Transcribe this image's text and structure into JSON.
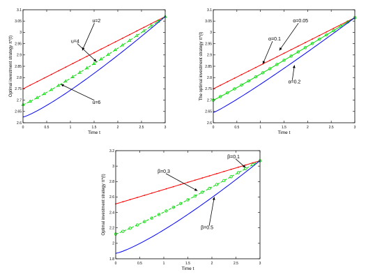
{
  "chart_data": [
    {
      "type": "line",
      "title": "",
      "xlabel": "Time t",
      "ylabel": "Optimal investment strategy π*(t)",
      "xlim": [
        0,
        3
      ],
      "ylim": [
        2.6,
        3.1
      ],
      "xticks": [
        "0",
        "0.5",
        "1",
        "1.5",
        "2",
        "2.5",
        "3"
      ],
      "yticks": [
        "2.6",
        "2.65",
        "2.7",
        "2.75",
        "2.8",
        "2.85",
        "2.9",
        "2.95",
        "3",
        "3.05",
        "3.1"
      ],
      "series": [
        {
          "name": "u=2",
          "color": "#ff0000",
          "marker": "dot",
          "dash": "solid",
          "x": [
            0,
            3
          ],
          "y": [
            2.75,
            3.07
          ],
          "curve": 1.0
        },
        {
          "name": "u=4",
          "color": "#00dd00",
          "marker": "triangle",
          "dash": "dashed",
          "x": [
            0,
            3
          ],
          "y": [
            2.68,
            3.07
          ],
          "curve": 1.1
        },
        {
          "name": "u=6",
          "color": "#0000ff",
          "marker": "none",
          "dash": "solid",
          "x": [
            0,
            3
          ],
          "y": [
            2.625,
            3.07
          ],
          "curve": 1.2
        }
      ],
      "annotations": [
        {
          "text": "u=2",
          "x": 1.55,
          "y": 3.05,
          "point_x": 1.25,
          "point_y": 2.92
        },
        {
          "text": "u=4",
          "x": 1.1,
          "y": 2.96,
          "point_x": 1.55,
          "point_y": 2.87
        },
        {
          "text": "u=6",
          "x": 1.55,
          "y": 2.69,
          "point_x": 0.8,
          "point_y": 2.77
        }
      ]
    },
    {
      "type": "line",
      "title": "",
      "xlabel": "Time t",
      "ylabel": "The optimal investment strategy π*(t)",
      "xlim": [
        0,
        3
      ],
      "ylim": [
        2.6,
        3.1
      ],
      "xticks": [
        "0",
        "0.5",
        "1",
        "1.5",
        "2",
        "2.5",
        "3"
      ],
      "yticks": [
        "2.6",
        "2.65",
        "2.7",
        "2.75",
        "2.8",
        "2.85",
        "2.9",
        "2.95",
        "3",
        "3.05",
        "3.1"
      ],
      "series": [
        {
          "name": "α=0.05",
          "color": "#ff0000",
          "marker": "dot",
          "dash": "solid",
          "x": [
            0,
            3
          ],
          "y": [
            2.75,
            3.065
          ],
          "curve": 1.0
        },
        {
          "name": "α=0.1",
          "color": "#00dd00",
          "marker": "circle",
          "dash": "solid",
          "x": [
            0,
            3
          ],
          "y": [
            2.7,
            3.065
          ],
          "curve": 1.05
        },
        {
          "name": "α=0.2",
          "color": "#0000ff",
          "marker": "none",
          "dash": "solid",
          "x": [
            0,
            3
          ],
          "y": [
            2.645,
            3.065
          ],
          "curve": 1.1
        }
      ],
      "annotations": [
        {
          "text": "α=0.05",
          "x": 1.85,
          "y": 3.05,
          "point_x": 1.4,
          "point_y": 2.92
        },
        {
          "text": "α=0.1",
          "x": 1.3,
          "y": 2.97,
          "point_x": 1.05,
          "point_y": 2.86
        },
        {
          "text": "α=0.2",
          "x": 1.72,
          "y": 2.78,
          "point_x": 1.72,
          "point_y": 2.855
        }
      ]
    },
    {
      "type": "line",
      "title": "",
      "xlabel": "Time t",
      "ylabel": "Optimal investment strategy π*(t)",
      "xlim": [
        0,
        3
      ],
      "ylim": [
        1.8,
        3.2
      ],
      "xticks": [
        "0",
        "0.5",
        "1",
        "1.5",
        "2",
        "2.5",
        "3"
      ],
      "yticks": [
        "1.8",
        "2",
        "2.2",
        "2.4",
        "2.6",
        "2.8",
        "3",
        "3.2"
      ],
      "series": [
        {
          "name": "β=0.1",
          "color": "#ff0000",
          "marker": "dot",
          "dash": "solid",
          "x": [
            0,
            3
          ],
          "y": [
            2.51,
            3.07
          ],
          "curve": 1.0
        },
        {
          "name": "β=0.3",
          "color": "#00dd00",
          "marker": "circle",
          "dash": "dashed",
          "x": [
            0,
            3
          ],
          "y": [
            2.12,
            3.07
          ],
          "curve": 1.1
        },
        {
          "name": "β=0.5",
          "color": "#0000ff",
          "marker": "none",
          "dash": "solid",
          "x": [
            0,
            3
          ],
          "y": [
            1.87,
            3.07
          ],
          "curve": 1.25
        }
      ],
      "annotations": [
        {
          "text": "β=0.1",
          "x": 2.45,
          "y": 3.12,
          "point_x": 2.7,
          "point_y": 2.98
        },
        {
          "text": "β=0.3",
          "x": 1.0,
          "y": 2.93,
          "point_x": 1.7,
          "point_y": 2.68
        },
        {
          "text": "β=0.5",
          "x": 1.9,
          "y": 2.2,
          "point_x": 2.05,
          "point_y": 2.6
        }
      ]
    }
  ]
}
